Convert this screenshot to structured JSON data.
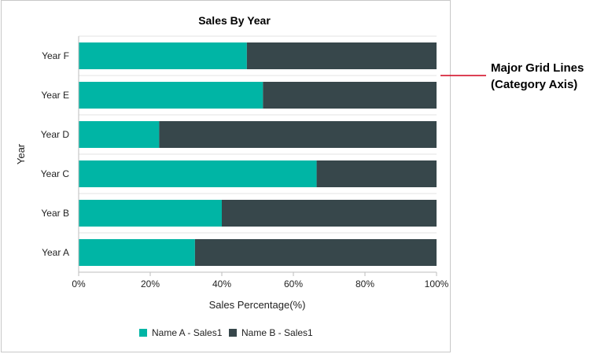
{
  "chart_data": {
    "type": "bar",
    "orientation": "horizontal",
    "stacked": "percent",
    "title": "Sales By Year",
    "xlabel": "Sales Percentage(%)",
    "ylabel": "Year",
    "categories": [
      "Year A",
      "Year B",
      "Year C",
      "Year D",
      "Year E",
      "Year F"
    ],
    "series": [
      {
        "name": "Name A - Sales1",
        "color": "#00b5a5",
        "values": [
          32.5,
          40,
          66.5,
          22.5,
          51.5,
          47
        ]
      },
      {
        "name": "Name B - Sales1",
        "color": "#37474b",
        "values": [
          67.5,
          60,
          33.5,
          77.5,
          48.5,
          53
        ]
      }
    ],
    "xlim": [
      0,
      100
    ],
    "xticks": [
      "0%",
      "20%",
      "40%",
      "60%",
      "80%",
      "100%"
    ],
    "xtick_values": [
      0,
      20,
      40,
      60,
      80,
      100
    ],
    "grid": "major gridlines on category axis",
    "legend_position": "bottom"
  },
  "callout": {
    "line1": "Major Grid Lines",
    "line2": "(Category Axis)",
    "color": "#d0021b"
  }
}
